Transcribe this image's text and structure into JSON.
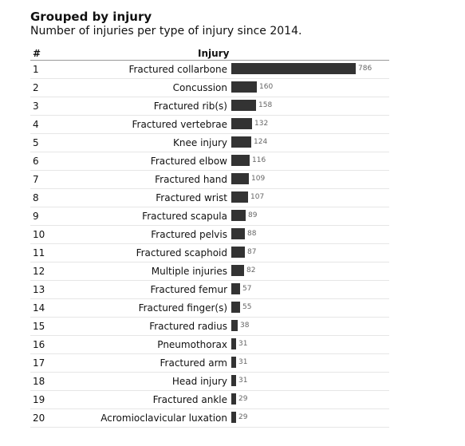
{
  "title": "Grouped by injury",
  "subtitle": "Number of injuries per type of injury since 2014.",
  "table": {
    "header": {
      "rank": "#",
      "name": "Injury"
    }
  },
  "colors": {
    "bar": "#333333",
    "value_label": "#666666"
  },
  "chart_data": {
    "type": "bar",
    "orientation": "horizontal",
    "title": "Grouped by injury",
    "subtitle": "Number of injuries per type of injury since 2014.",
    "ranks": [
      "1",
      "2",
      "3",
      "4",
      "5",
      "6",
      "7",
      "8",
      "9",
      "10",
      "11",
      "12",
      "13",
      "14",
      "15",
      "16",
      "17",
      "18",
      "19",
      "20"
    ],
    "categories": [
      "Fractured collarbone",
      "Concussion",
      "Fractured rib(s)",
      "Fractured vertebrae",
      "Knee injury",
      "Fractured elbow",
      "Fractured hand",
      "Fractured wrist",
      "Fractured scapula",
      "Fractured pelvis",
      "Fractured scaphoid",
      "Multiple injuries",
      "Fractured femur",
      "Fractured finger(s)",
      "Fractured radius",
      "Pneumothorax",
      "Fractured arm",
      "Head injury",
      "Fractured ankle",
      "Acromioclavicular luxation"
    ],
    "values": [
      786,
      160,
      158,
      132,
      124,
      116,
      109,
      107,
      89,
      88,
      87,
      82,
      57,
      55,
      38,
      31,
      31,
      31,
      29,
      29
    ],
    "xlim": [
      0,
      786
    ]
  }
}
